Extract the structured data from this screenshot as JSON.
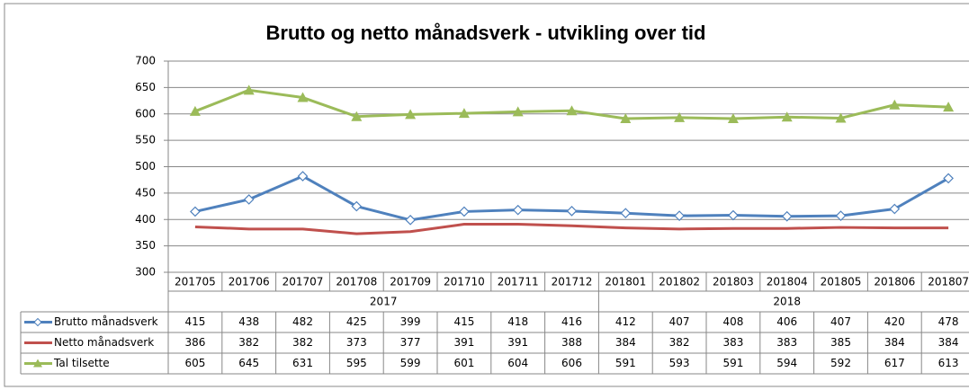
{
  "chart_data": {
    "type": "line",
    "title": "Brutto og netto månadsverk - utvikling over tid",
    "categories": [
      "201705",
      "201706",
      "201707",
      "201708",
      "201709",
      "201710",
      "201711",
      "201712",
      "201801",
      "201802",
      "201803",
      "201804",
      "201805",
      "201806",
      "201807"
    ],
    "group_labels": [
      "2017",
      "2018"
    ],
    "series": [
      {
        "name": "Brutto månadsverk",
        "color": "#4f81bd",
        "marker": "diamond",
        "values": [
          415,
          438,
          482,
          425,
          399,
          415,
          418,
          416,
          412,
          407,
          408,
          406,
          407,
          420,
          478
        ]
      },
      {
        "name": "Netto månadsverk",
        "color": "#c0504d",
        "marker": "none",
        "values": [
          386,
          382,
          382,
          373,
          377,
          391,
          391,
          388,
          384,
          382,
          383,
          383,
          385,
          384,
          384
        ]
      },
      {
        "name": "Tal tilsette",
        "color": "#9bbb59",
        "marker": "triangle",
        "values": [
          605,
          645,
          631,
          595,
          599,
          601,
          604,
          606,
          591,
          593,
          591,
          594,
          592,
          617,
          613
        ]
      }
    ],
    "ylim": [
      300,
      700
    ],
    "yticks": [
      300,
      350,
      400,
      450,
      500,
      550,
      600,
      650,
      700
    ],
    "grid": true
  }
}
